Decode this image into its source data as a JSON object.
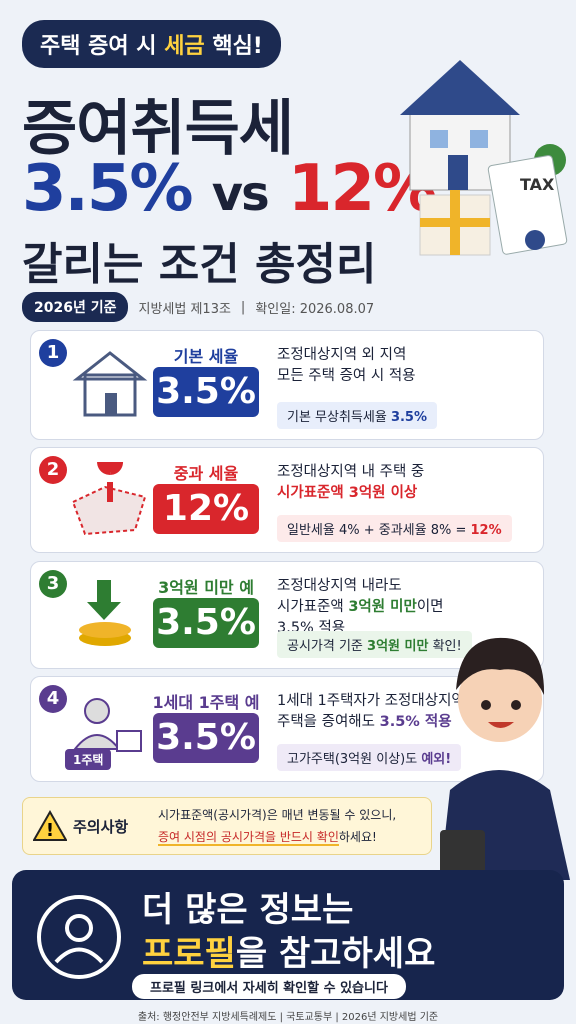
{
  "header": {
    "badge": [
      "주택 증여 시 ",
      "세금",
      " 핵심!"
    ],
    "title": "증여취득세",
    "rate_low": "3.5%",
    "vs": "vs",
    "rate_high": "12%",
    "subtitle": "갈리는 조건 총정리",
    "tax_label": "TAX"
  },
  "meta": {
    "year": "2026년 기준",
    "law": "지방세법 제13조",
    "checked": "확인일: 2026.08.07"
  },
  "cards": [
    {
      "number": "1",
      "label": "기본 세율",
      "rate": "3.5%",
      "lines": [
        [
          "조정대상지역 외 지역"
        ],
        [
          "모든 주택 증여 시 적용"
        ]
      ],
      "note": [
        "기본 무상취득세율 ",
        "3.5%"
      ]
    },
    {
      "number": "2",
      "label": "중과 세율",
      "rate": "12%",
      "lines": [
        [
          "조정대상지역 내 주택 중"
        ],
        [
          "시가표준액 3억원 이상"
        ]
      ],
      "note": [
        "일반세율 4% + 중과세율 8% = ",
        "12%"
      ]
    },
    {
      "number": "3",
      "label": "3억원 미만 예외",
      "rate": "3.5%",
      "lines": [
        [
          "조정대상지역 내라도"
        ],
        [
          "시가표준액 ",
          "3억원 미만",
          "이면"
        ],
        [
          "3.5% 적용"
        ]
      ],
      "note": [
        "공시가격 기준 ",
        "3억원 미만",
        " 확인!"
      ]
    },
    {
      "number": "4",
      "label": "1세대 1주택 예외",
      "rate": "3.5%",
      "icon_label": "1주택",
      "lines": [
        [
          "1세대 1주택자가 조정대상지역"
        ],
        [
          "주택을 증여해도 ",
          "3.5% 적용"
        ]
      ],
      "note": [
        "고가주택(3억원 이상)도 ",
        "예외!"
      ]
    }
  ],
  "caution": {
    "label": "주의사항",
    "line1": "시가표준액(공시가격)은 매년 변동될 수 있으니,",
    "line2": [
      "증여 시점의 공시가격을 반드시 확인",
      "하세요!"
    ]
  },
  "footer": {
    "line1": "더 많은 정보는",
    "line2": [
      "프로필",
      "을 참고하세요"
    ],
    "link": "프로필 링크에서 자세히 확인할 수 있습니다"
  },
  "source": "출처: 행정안전부 지방세특례제도 | 국토교통부 | 2026년 지방세법 기준"
}
